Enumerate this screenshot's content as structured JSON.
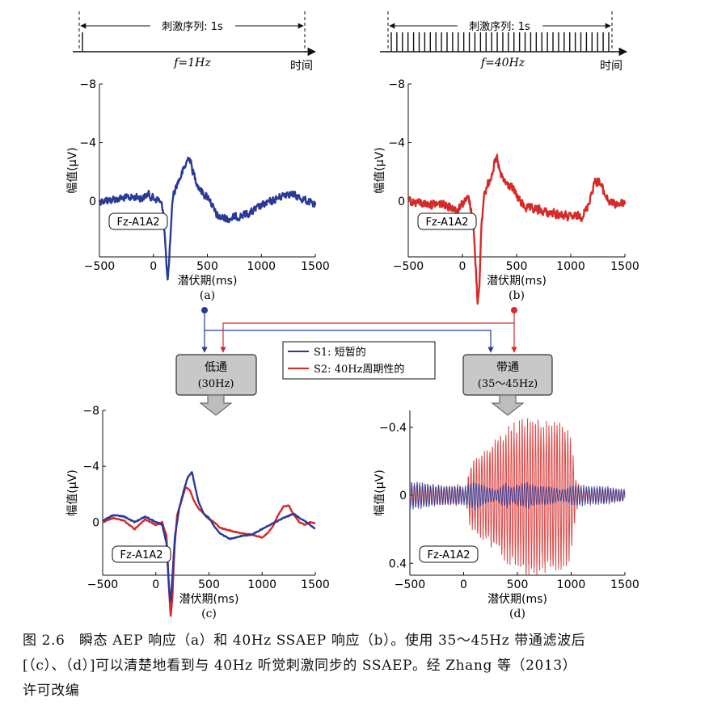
{
  "stimulus": {
    "duration_label": "刺激序列: 1s",
    "freq_left": "f=1Hz",
    "freq_right": "f=40Hz",
    "time_label": "时间",
    "left_pulse_count": 1,
    "right_pulse_count": 40
  },
  "filters": {
    "lowpass": {
      "line1": "低通",
      "line2": "(30Hz)"
    },
    "bandpass": {
      "line1": "带通",
      "line2": "(35～45Hz)"
    }
  },
  "legend": {
    "s1": "S1: 短暂的",
    "s2": "S2: 40Hz周期性的"
  },
  "colors": {
    "s1": "#2b3a97",
    "s2": "#d42a2a",
    "box_fill": "#c8c8c8"
  },
  "caption": {
    "line1": "图 2.6　瞬态 AEP 响应（a）和 40Hz SSAEP 响应（b）。使用 35～45Hz 带通滤波后",
    "line2": "[（c）、（d）]可以清楚地看到与 40Hz 听觉刺激同步的 SSAEP。经 Zhang 等（2013）",
    "line3": "许可改编"
  },
  "chart_data": [
    {
      "id": "a",
      "type": "line",
      "panel_label": "(a)",
      "xlabel": "潜伏期(ms)",
      "ylabel": "幅值(μV)",
      "channel_label": "Fz-A1A2",
      "x_ticks": [
        -500,
        0,
        500,
        1000,
        1500
      ],
      "y_ticks": [
        -8,
        -4,
        0
      ],
      "y_tick_labels": [
        "−8",
        "−4",
        "0"
      ],
      "xlim": [
        -500,
        1500
      ],
      "ylim": [
        -8,
        3.8
      ],
      "y_inverted": true,
      "series": [
        {
          "color": "#2b3a97",
          "noise": 0.35,
          "points": [
            [
              -500,
              0
            ],
            [
              -300,
              0.2
            ],
            [
              -150,
              0.3
            ],
            [
              -100,
              0.2
            ],
            [
              -50,
              0.5
            ],
            [
              0,
              0.2
            ],
            [
              50,
              0.1
            ],
            [
              90,
              -0.5
            ],
            [
              115,
              -3.5
            ],
            [
              130,
              -5.5
            ],
            [
              145,
              -4.5
            ],
            [
              160,
              -2
            ],
            [
              180,
              0.3
            ],
            [
              220,
              1.2
            ],
            [
              260,
              1.8
            ],
            [
              300,
              2.5
            ],
            [
              330,
              3.1
            ],
            [
              360,
              2.2
            ],
            [
              390,
              1.5
            ],
            [
              430,
              0.8
            ],
            [
              480,
              0.4
            ],
            [
              520,
              0.2
            ],
            [
              560,
              -0.6
            ],
            [
              600,
              -1.1
            ],
            [
              700,
              -1.2
            ],
            [
              800,
              -1.0
            ],
            [
              900,
              -0.8
            ],
            [
              1000,
              -0.3
            ],
            [
              1100,
              0
            ],
            [
              1200,
              0.4
            ],
            [
              1250,
              0.6
            ],
            [
              1300,
              0.4
            ],
            [
              1400,
              0.1
            ],
            [
              1500,
              -0.3
            ]
          ]
        }
      ]
    },
    {
      "id": "b",
      "type": "line",
      "panel_label": "(b)",
      "xlabel": "潜伏期(ms)",
      "ylabel": "幅值(μV)",
      "channel_label": "Fz-A1A2",
      "x_ticks": [
        -500,
        0,
        500,
        1000,
        1500
      ],
      "y_ticks": [
        -8,
        -4,
        0
      ],
      "y_tick_labels": [
        "−8",
        "−4",
        "0"
      ],
      "xlim": [
        -500,
        1500
      ],
      "ylim": [
        -8,
        3.8
      ],
      "y_inverted": true,
      "series": [
        {
          "color": "#d42a2a",
          "noise": 0.4,
          "points": [
            [
              -500,
              0
            ],
            [
              -300,
              -0.2
            ],
            [
              -150,
              -0.2
            ],
            [
              -50,
              -0.6
            ],
            [
              0,
              -0.1
            ],
            [
              60,
              0.2
            ],
            [
              100,
              -1.5
            ],
            [
              125,
              -4.8
            ],
            [
              140,
              -6.8
            ],
            [
              155,
              -5.8
            ],
            [
              175,
              -2
            ],
            [
              200,
              0.5
            ],
            [
              240,
              1.2
            ],
            [
              290,
              2.4
            ],
            [
              320,
              2.9
            ],
            [
              350,
              1.8
            ],
            [
              400,
              1.2
            ],
            [
              450,
              1.0
            ],
            [
              500,
              0.4
            ],
            [
              550,
              -0.2
            ],
            [
              600,
              -0.5
            ],
            [
              700,
              -0.6
            ],
            [
              800,
              -0.8
            ],
            [
              900,
              -0.9
            ],
            [
              1000,
              -1.1
            ],
            [
              1100,
              -1.0
            ],
            [
              1150,
              -0.5
            ],
            [
              1180,
              0.3
            ],
            [
              1220,
              1.3
            ],
            [
              1260,
              1.4
            ],
            [
              1300,
              0.7
            ],
            [
              1350,
              0
            ],
            [
              1400,
              -0.2
            ],
            [
              1500,
              -0.1
            ]
          ]
        }
      ]
    },
    {
      "id": "c",
      "type": "line",
      "panel_label": "(c)",
      "xlabel": "潜伏期(ms)",
      "ylabel": "幅值(μV)",
      "channel_label": "Fz-A1A2",
      "x_ticks": [
        -500,
        0,
        500,
        1000,
        1500
      ],
      "y_ticks": [
        -8,
        -4,
        0
      ],
      "y_tick_labels": [
        "−8",
        "−4",
        "0"
      ],
      "xlim": [
        -500,
        1500
      ],
      "ylim": [
        -8,
        3.8
      ],
      "y_inverted": true,
      "series": [
        {
          "color": "#d42a2a",
          "noise": 0.04,
          "points": [
            [
              -500,
              0
            ],
            [
              -400,
              0.3
            ],
            [
              -300,
              0.1
            ],
            [
              -200,
              -0.5
            ],
            [
              -100,
              0.2
            ],
            [
              0,
              -0.2
            ],
            [
              60,
              0
            ],
            [
              100,
              -1
            ],
            [
              125,
              -5
            ],
            [
              140,
              -6.7
            ],
            [
              155,
              -5.5
            ],
            [
              175,
              -2
            ],
            [
              200,
              0.5
            ],
            [
              240,
              1.5
            ],
            [
              280,
              2.5
            ],
            [
              320,
              2.3
            ],
            [
              360,
              1.5
            ],
            [
              400,
              1.0
            ],
            [
              450,
              0.6
            ],
            [
              500,
              0.2
            ],
            [
              550,
              0
            ],
            [
              600,
              -0.4
            ],
            [
              700,
              -0.6
            ],
            [
              800,
              -0.8
            ],
            [
              900,
              -0.9
            ],
            [
              1000,
              -1.1
            ],
            [
              1050,
              -0.8
            ],
            [
              1100,
              -0.3
            ],
            [
              1150,
              0.5
            ],
            [
              1200,
              1.1
            ],
            [
              1250,
              1.2
            ],
            [
              1300,
              0.5
            ],
            [
              1350,
              0
            ],
            [
              1400,
              -0.2
            ],
            [
              1450,
              0
            ],
            [
              1500,
              -0.1
            ]
          ]
        },
        {
          "color": "#2b3a97",
          "noise": 0.04,
          "points": [
            [
              -500,
              0.1
            ],
            [
              -400,
              0.5
            ],
            [
              -300,
              0.4
            ],
            [
              -200,
              0
            ],
            [
              -100,
              0.4
            ],
            [
              0,
              0
            ],
            [
              60,
              -0.2
            ],
            [
              100,
              -1.5
            ],
            [
              125,
              -4.8
            ],
            [
              140,
              -5.7
            ],
            [
              155,
              -4
            ],
            [
              180,
              -1
            ],
            [
              220,
              1
            ],
            [
              260,
              2.2
            ],
            [
              300,
              3.2
            ],
            [
              340,
              3.6
            ],
            [
              370,
              2.5
            ],
            [
              400,
              1.5
            ],
            [
              450,
              0.6
            ],
            [
              500,
              0.3
            ],
            [
              550,
              -0.3
            ],
            [
              600,
              -0.8
            ],
            [
              700,
              -1.2
            ],
            [
              800,
              -1.0
            ],
            [
              900,
              -0.9
            ],
            [
              1000,
              -0.5
            ],
            [
              1100,
              -0.1
            ],
            [
              1200,
              0.3
            ],
            [
              1300,
              0.6
            ],
            [
              1350,
              0.3
            ],
            [
              1400,
              0.1
            ],
            [
              1450,
              -0.2
            ],
            [
              1500,
              -0.5
            ]
          ]
        }
      ]
    },
    {
      "id": "d",
      "type": "line",
      "panel_label": "(d)",
      "xlabel": "潜伏期(ms)",
      "ylabel": "幅值(μV)",
      "channel_label": "Fz-A1A2",
      "x_ticks": [
        -500,
        0,
        500,
        1000,
        1500
      ],
      "y_ticks": [
        -0.4,
        0,
        0.4
      ],
      "y_tick_labels": [
        "−0.4",
        "0",
        "0.4"
      ],
      "xlim": [
        -500,
        1500
      ],
      "ylim": [
        -0.5,
        0.47
      ],
      "y_inverted": false,
      "oscillation_hz": 40,
      "series": [
        {
          "color": "#d42a2a",
          "envelope": [
            [
              -500,
              0.06
            ],
            [
              -100,
              0.05
            ],
            [
              -50,
              0.06
            ],
            [
              0,
              0.03
            ],
            [
              20,
              0.03
            ],
            [
              60,
              0.17
            ],
            [
              150,
              0.22
            ],
            [
              300,
              0.3
            ],
            [
              400,
              0.36
            ],
            [
              600,
              0.42
            ],
            [
              800,
              0.41
            ],
            [
              900,
              0.4
            ],
            [
              1000,
              0.34
            ],
            [
              1040,
              0.09
            ],
            [
              1100,
              0.03
            ],
            [
              1300,
              0.04
            ],
            [
              1500,
              0.03
            ]
          ]
        },
        {
          "color": "#2b3a97",
          "envelope": [
            [
              -500,
              0.08
            ],
            [
              -200,
              0.05
            ],
            [
              0,
              0.05
            ],
            [
              100,
              0.08
            ],
            [
              200,
              0.05
            ],
            [
              300,
              0.03
            ],
            [
              400,
              0.07
            ],
            [
              450,
              0.04
            ],
            [
              500,
              0.06
            ],
            [
              600,
              0.07
            ],
            [
              700,
              0.05
            ],
            [
              800,
              0.05
            ],
            [
              900,
              0.03
            ],
            [
              1000,
              0.05
            ],
            [
              1100,
              0.06
            ],
            [
              1200,
              0.05
            ],
            [
              1300,
              0.05
            ],
            [
              1400,
              0.04
            ],
            [
              1500,
              0.03
            ]
          ]
        }
      ]
    }
  ]
}
